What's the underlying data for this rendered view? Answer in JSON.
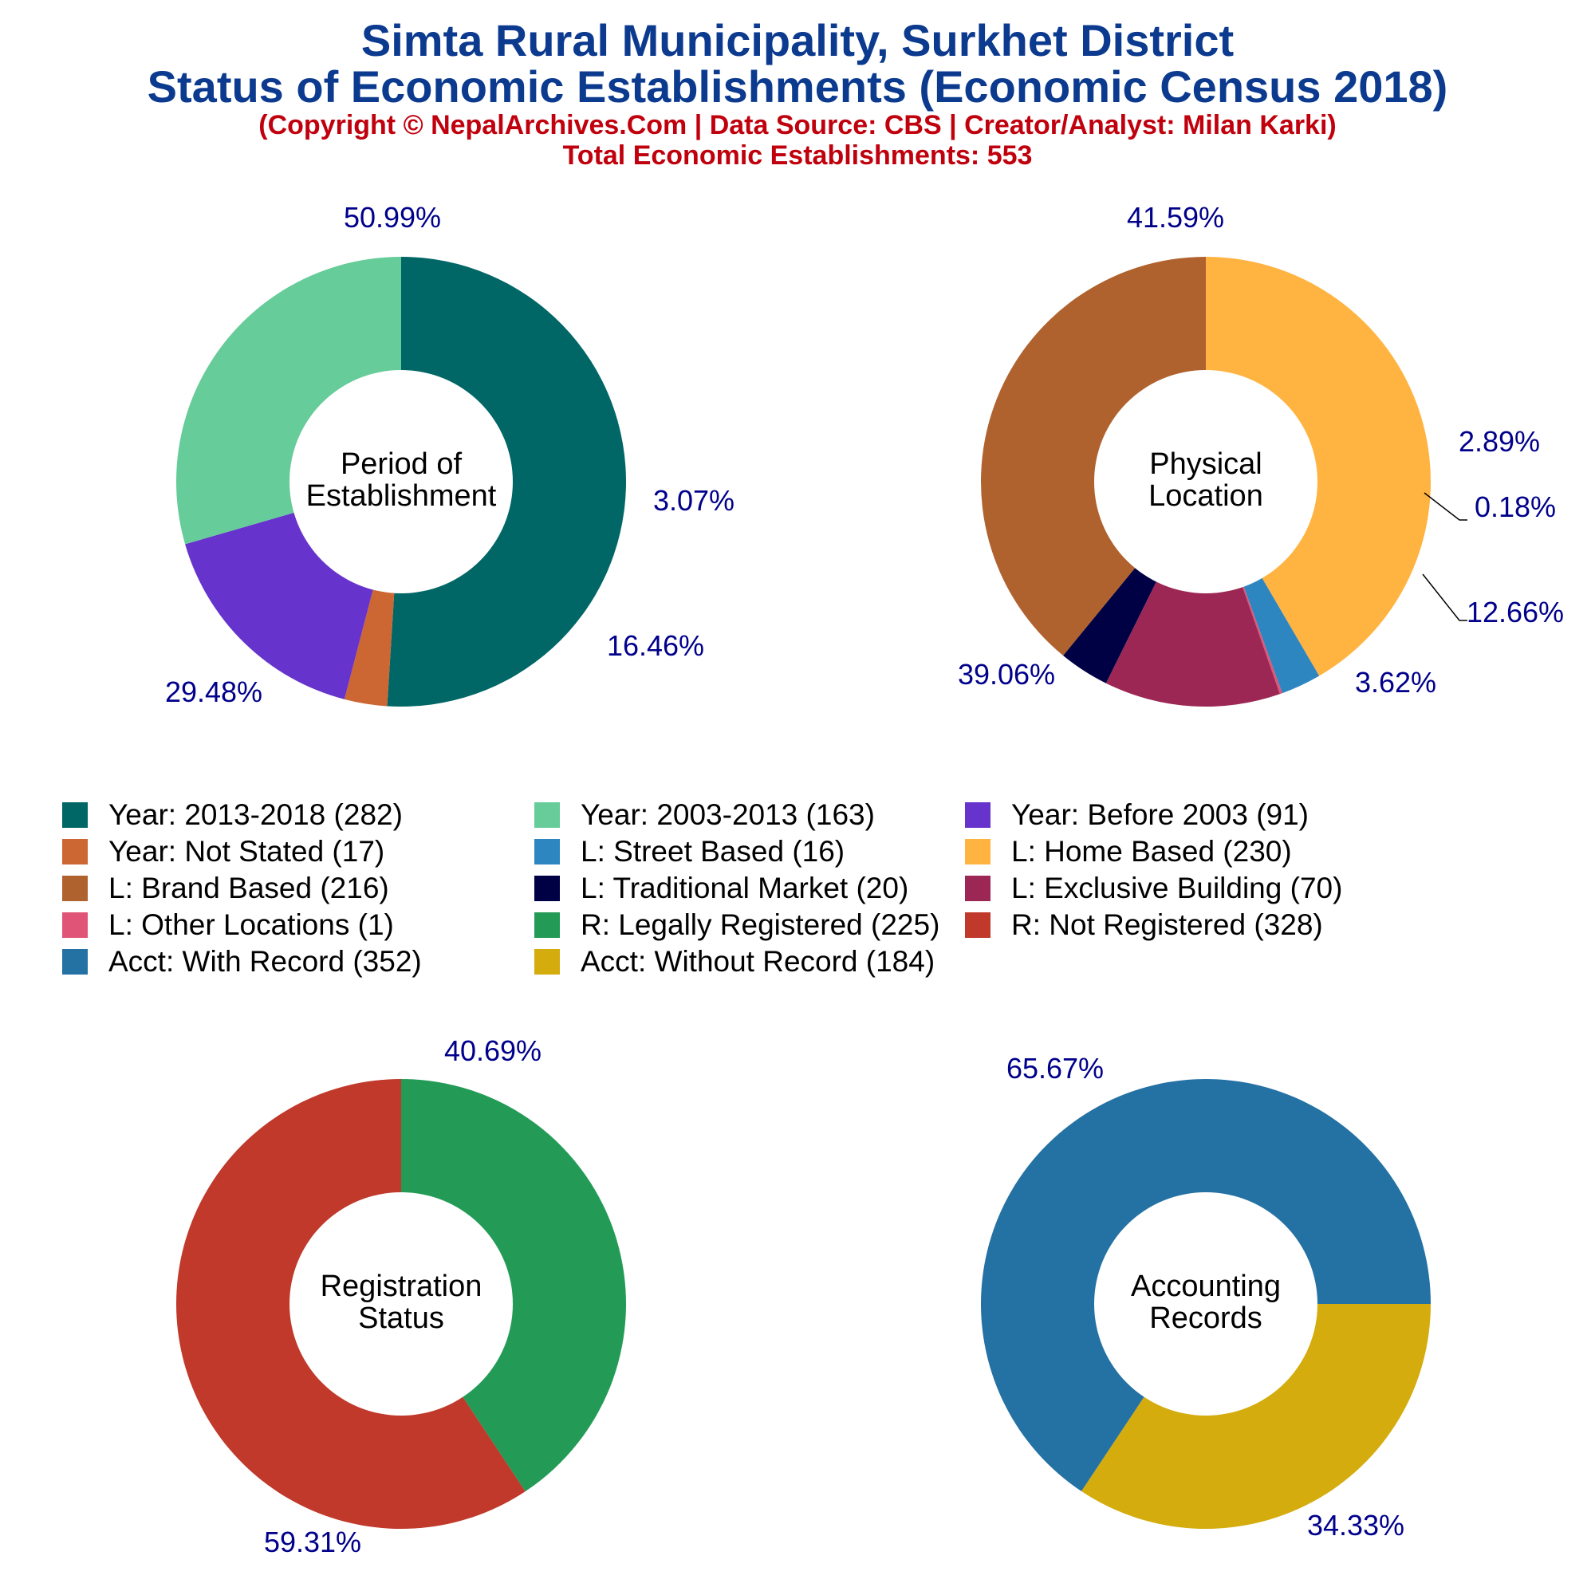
{
  "header": {
    "title_line1": "Simta Rural Municipality, Surkhet District",
    "title_line2": "Status of Economic Establishments (Economic Census 2018)",
    "copyright": "(Copyright © NepalArchives.Com | Data Source: CBS | Creator/Analyst: Milan Karki)",
    "total": "Total Economic Establishments: 553"
  },
  "colors": {
    "title": "#0b3a8f",
    "subtitle": "#c0000d",
    "pct_label": "#00008b"
  },
  "chart_data": [
    {
      "type": "pie",
      "center_label": [
        "Period of",
        "Establishment"
      ],
      "slices": [
        {
          "label": "Year: 2013-2018",
          "count": 282,
          "percent": 50.99,
          "display": "50.99%",
          "color": "#006666"
        },
        {
          "label": "Year: Not Stated",
          "count": 17,
          "percent": 3.07,
          "display": "3.07%",
          "color": "#cc6633"
        },
        {
          "label": "Year: Before 2003",
          "count": 91,
          "percent": 16.46,
          "display": "16.46%",
          "color": "#6633cc"
        },
        {
          "label": "Year: 2003-2013",
          "count": 163,
          "percent": 29.48,
          "display": "29.48%",
          "color": "#66cc99"
        }
      ]
    },
    {
      "type": "pie",
      "center_label": [
        "Physical",
        "Location"
      ],
      "slices": [
        {
          "label": "L: Home Based",
          "count": 230,
          "percent": 41.59,
          "display": "41.59%",
          "color": "#ffb340"
        },
        {
          "label": "L: Street Based",
          "count": 16,
          "percent": 2.89,
          "display": "2.89%",
          "color": "#2e86c1"
        },
        {
          "label": "L: Other Locations",
          "count": 1,
          "percent": 0.18,
          "display": "0.18%",
          "color": "#e05577"
        },
        {
          "label": "L: Exclusive Building",
          "count": 70,
          "percent": 12.66,
          "display": "12.66%",
          "color": "#9c2754"
        },
        {
          "label": "L: Traditional Market",
          "count": 20,
          "percent": 3.62,
          "display": "3.62%",
          "color": "#000044"
        },
        {
          "label": "L: Brand Based",
          "count": 216,
          "percent": 39.06,
          "display": "39.06%",
          "color": "#b0622e"
        }
      ]
    },
    {
      "type": "pie",
      "center_label": [
        "Registration",
        "Status"
      ],
      "slices": [
        {
          "label": "R: Legally Registered",
          "count": 225,
          "percent": 40.69,
          "display": "40.69%",
          "color": "#239b56"
        },
        {
          "label": "R: Not Registered",
          "count": 328,
          "percent": 59.31,
          "display": "59.31%",
          "color": "#c0392b"
        }
      ]
    },
    {
      "type": "pie",
      "center_label": [
        "Accounting",
        "Records"
      ],
      "slices": [
        {
          "label": "Acct: Without Record",
          "count": 184,
          "percent": 34.33,
          "display": "34.33%",
          "color": "#d4ac0d"
        },
        {
          "label": "Acct: With Record",
          "count": 352,
          "percent": 65.67,
          "display": "65.67%",
          "color": "#2471a3"
        }
      ]
    }
  ],
  "legend": [
    {
      "text": "Year: 2013-2018 (282)",
      "color": "#006666"
    },
    {
      "text": "Year: 2003-2013 (163)",
      "color": "#66cc99"
    },
    {
      "text": "Year: Before 2003 (91)",
      "color": "#6633cc"
    },
    {
      "text": "Year: Not Stated (17)",
      "color": "#cc6633"
    },
    {
      "text": "L: Street Based (16)",
      "color": "#2e86c1"
    },
    {
      "text": "L: Home Based (230)",
      "color": "#ffb340"
    },
    {
      "text": "L: Brand Based (216)",
      "color": "#b0622e"
    },
    {
      "text": "L: Traditional Market (20)",
      "color": "#000044"
    },
    {
      "text": "L: Exclusive Building (70)",
      "color": "#9c2754"
    },
    {
      "text": "L: Other Locations (1)",
      "color": "#e05577"
    },
    {
      "text": "R: Legally Registered (225)",
      "color": "#239b56"
    },
    {
      "text": "R: Not Registered (328)",
      "color": "#c0392b"
    },
    {
      "text": "Acct: With Record (352)",
      "color": "#2471a3"
    },
    {
      "text": "Acct: Without Record (184)",
      "color": "#d4ac0d"
    }
  ]
}
